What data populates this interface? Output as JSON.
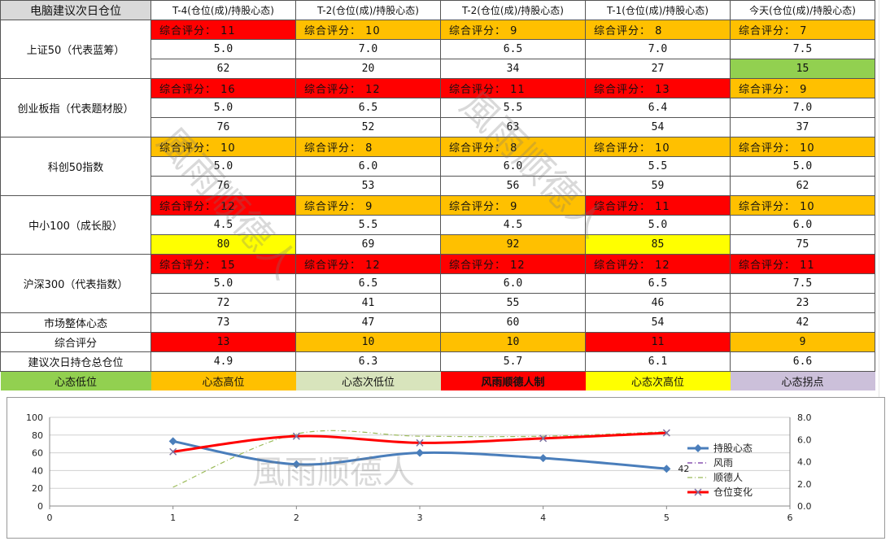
{
  "table": {
    "header": [
      "电脑建议次日仓位",
      "T-4(仓位(成)/持股心态)",
      "T-2(仓位(成)/持股心态)",
      "T-2(仓位(成)/持股心态)",
      "T-1(仓位(成)/持股心态)",
      "今天(仓位(成)/持股心态)"
    ],
    "groups": [
      {
        "name": "上证50（代表蓝筹）",
        "scores": [
          "综合评分： 11",
          "综合评分： 10",
          "综合评分：  9",
          "综合评分：  8",
          "综合评分：  7"
        ],
        "score_colors": [
          "#ff0000",
          "#ffc000",
          "#ffc000",
          "#ffc000",
          "#ffc000"
        ],
        "positions": [
          "5.0",
          "7.0",
          "6.5",
          "7.0",
          "7.5"
        ],
        "moods": [
          "62",
          "20",
          "34",
          "27",
          "15"
        ],
        "mood_colors": [
          "#ffffff",
          "#ffffff",
          "#ffffff",
          "#ffffff",
          "#92d050"
        ]
      },
      {
        "name": "创业板指（代表题材股）",
        "scores": [
          "综合评分： 16",
          "综合评分： 12",
          "综合评分： 11",
          "综合评分： 13",
          "综合评分：  9"
        ],
        "score_colors": [
          "#ff0000",
          "#ff0000",
          "#ff0000",
          "#ff0000",
          "#ffc000"
        ],
        "positions": [
          "5.0",
          "6.5",
          "5.5",
          "6.4",
          "7.0"
        ],
        "moods": [
          "76",
          "52",
          "63",
          "54",
          "37"
        ],
        "mood_colors": [
          "#ffffff",
          "#ffffff",
          "#ffffff",
          "#ffffff",
          "#ffffff"
        ]
      },
      {
        "name": "科创50指数",
        "scores": [
          "综合评分： 10",
          "综合评分：  8",
          "综合评分：  8",
          "综合评分： 10",
          "综合评分： 10"
        ],
        "score_colors": [
          "#ffc000",
          "#ffc000",
          "#ffc000",
          "#ffc000",
          "#ffc000"
        ],
        "positions": [
          "5.0",
          "6.0",
          "6.0",
          "5.5",
          "5.0"
        ],
        "moods": [
          "76",
          "53",
          "56",
          "59",
          "62"
        ],
        "mood_colors": [
          "#ffffff",
          "#ffffff",
          "#ffffff",
          "#ffffff",
          "#ffffff"
        ]
      },
      {
        "name": "中小100（成长股）",
        "scores": [
          "综合评分： 12",
          "综合评分：  9",
          "综合评分：  9",
          "综合评分： 11",
          "综合评分： 10"
        ],
        "score_colors": [
          "#ff0000",
          "#ffc000",
          "#ffc000",
          "#ff0000",
          "#ffc000"
        ],
        "positions": [
          "4.5",
          "5.5",
          "4.5",
          "5.0",
          "6.0"
        ],
        "moods": [
          "80",
          "69",
          "92",
          "85",
          "75"
        ],
        "mood_colors": [
          "#ffff00",
          "#ffffff",
          "#ffc000",
          "#ffff00",
          "#ffffff"
        ]
      },
      {
        "name": "沪深300（代表指数）",
        "scores": [
          "综合评分： 15",
          "综合评分： 12",
          "综合评分： 12",
          "综合评分： 12",
          "综合评分： 11"
        ],
        "score_colors": [
          "#ff0000",
          "#ff0000",
          "#ff0000",
          "#ff0000",
          "#ff0000"
        ],
        "positions": [
          "5.0",
          "6.5",
          "6.0",
          "6.5",
          "7.5"
        ],
        "moods": [
          "72",
          "41",
          "55",
          "46",
          "23"
        ],
        "mood_colors": [
          "#ffffff",
          "#ffffff",
          "#ffffff",
          "#ffffff",
          "#ffffff"
        ]
      }
    ],
    "market": {
      "label": "市场整体心态",
      "values": [
        "73",
        "47",
        "60",
        "54",
        "42"
      ]
    },
    "overall": {
      "label": "综合评分",
      "values": [
        "13",
        "10",
        "10",
        "11",
        "9"
      ],
      "colors": [
        "#ff0000",
        "#ffc000",
        "#ffc000",
        "#ff0000",
        "#ffc000"
      ]
    },
    "suggest": {
      "label": "建议次日持仓总仓位",
      "values": [
        "4.9",
        "6.3",
        "5.7",
        "6.1",
        "6.6"
      ]
    },
    "legend_bar": [
      {
        "label": "心态低位",
        "color": "#92d050"
      },
      {
        "label": "心态高位",
        "color": "#ffc000"
      },
      {
        "label": "心态次低位",
        "color": "#d8e4bc"
      },
      {
        "label": "风雨顺德人制",
        "color": "#ff0000"
      },
      {
        "label": "心态次高位",
        "color": "#ffff00"
      },
      {
        "label": "心态拐点",
        "color": "#ccc0da"
      }
    ]
  },
  "watermark_text": "風雨顺德人",
  "chart_data": {
    "type": "line",
    "x": [
      1,
      2,
      3,
      4,
      5
    ],
    "xlim": [
      0,
      6
    ],
    "xticks": [
      "0",
      "1",
      "2",
      "3",
      "4",
      "5",
      "6"
    ],
    "ylim_left": [
      0,
      100
    ],
    "yticks_left": [
      "0",
      "20",
      "40",
      "60",
      "80",
      "100"
    ],
    "ylim_right": [
      0,
      8
    ],
    "yticks_right": [
      "0.0",
      "2.0",
      "4.0",
      "6.0",
      "8.0"
    ],
    "grid": true,
    "legend_position": "right",
    "series": [
      {
        "name": "持股心态",
        "axis": "left",
        "color": "#4a7ebb",
        "marker": "diamond",
        "values": [
          73,
          47,
          60,
          54,
          42
        ]
      },
      {
        "name": "风雨",
        "axis": "right",
        "color": "#7030a0",
        "dash": "dashdot",
        "values": [
          null,
          null,
          null,
          null,
          null
        ]
      },
      {
        "name": "顺德人",
        "axis": "right",
        "color": "#9bbb59",
        "dash": "dashdot",
        "values": [
          1.7,
          6.5,
          6.3,
          6.3,
          6.7
        ]
      },
      {
        "name": "仓位变化",
        "axis": "right",
        "color": "#ff0000",
        "marker": "x",
        "values": [
          4.9,
          6.3,
          5.7,
          6.1,
          6.6
        ]
      }
    ],
    "data_labels": [
      {
        "series": "持股心态",
        "index": 4,
        "text": "42"
      }
    ]
  }
}
